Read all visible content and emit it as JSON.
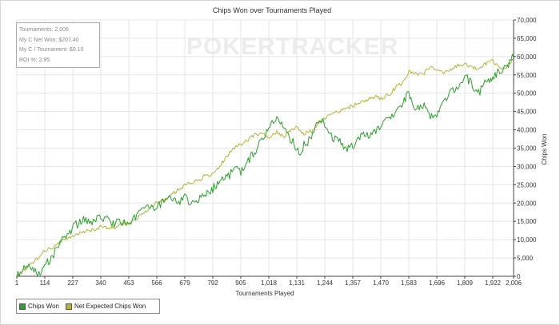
{
  "chart_data": {
    "type": "line",
    "title": "Chips Won over Tournaments Played",
    "xlabel": "Tournaments Played",
    "ylabel": "Chips Won",
    "x_ticks": [
      "1",
      "114",
      "227",
      "340",
      "453",
      "566",
      "679",
      "792",
      "905",
      "1,018",
      "1,131",
      "1,244",
      "1,357",
      "1,470",
      "1,583",
      "1,696",
      "1,809",
      "1,922",
      "2,006"
    ],
    "y_ticks": [
      "0",
      "5,000",
      "10,000",
      "15,000",
      "20,000",
      "25,000",
      "30,000",
      "35,000",
      "40,000",
      "45,000",
      "50,000",
      "55,000",
      "60,000",
      "65,000",
      "70,000"
    ],
    "xlim": [
      1,
      2006
    ],
    "ylim": [
      0,
      70000
    ],
    "grid": true,
    "legend_position": "bottom-left",
    "series": [
      {
        "name": "Chips Won",
        "color": "#2ca02c",
        "x": [
          1,
          30,
          60,
          90,
          114,
          150,
          180,
          210,
          240,
          270,
          300,
          330,
          360,
          390,
          420,
          453,
          480,
          510,
          540,
          566,
          600,
          630,
          660,
          679,
          700,
          730,
          760,
          792,
          820,
          850,
          880,
          905,
          930,
          960,
          990,
          1018,
          1050,
          1080,
          1100,
          1131,
          1140,
          1160,
          1180,
          1200,
          1220,
          1244,
          1270,
          1290,
          1310,
          1330,
          1357,
          1380,
          1400,
          1430,
          1470,
          1500,
          1530,
          1560,
          1583,
          1610,
          1640,
          1670,
          1696,
          1720,
          1750,
          1780,
          1809,
          1840,
          1870,
          1900,
          1922,
          1950,
          1980,
          2006
        ],
        "values": [
          0,
          2000,
          2500,
          1000,
          3000,
          6000,
          10000,
          12000,
          14000,
          15500,
          14000,
          16000,
          15500,
          14500,
          15000,
          14000,
          16000,
          18000,
          18500,
          19000,
          20500,
          21500,
          20500,
          22000,
          20000,
          21000,
          22000,
          24000,
          26000,
          27000,
          29000,
          28500,
          31000,
          34000,
          37000,
          41000,
          43000,
          40000,
          38000,
          35000,
          33000,
          36000,
          37000,
          40000,
          43000,
          42000,
          38000,
          37000,
          36500,
          35000,
          35500,
          38000,
          39000,
          38500,
          41000,
          43000,
          45000,
          47500,
          50000,
          45500,
          47000,
          43500,
          44000,
          47000,
          50000,
          52000,
          55000,
          52000,
          50500,
          53500,
          54500,
          56000,
          57500,
          60000
        ]
      },
      {
        "name": "Net Expected Chips Won",
        "color": "#b5b534",
        "x": [
          1,
          30,
          60,
          90,
          114,
          150,
          180,
          227,
          260,
          300,
          340,
          370,
          400,
          430,
          453,
          480,
          510,
          540,
          566,
          600,
          630,
          660,
          679,
          700,
          730,
          760,
          792,
          820,
          850,
          880,
          905,
          930,
          960,
          990,
          1018,
          1050,
          1080,
          1110,
          1131,
          1160,
          1190,
          1220,
          1244,
          1270,
          1300,
          1330,
          1357,
          1390,
          1420,
          1450,
          1470,
          1500,
          1530,
          1560,
          1583,
          1610,
          1640,
          1670,
          1696,
          1720,
          1750,
          1780,
          1809,
          1840,
          1870,
          1900,
          1922,
          1950,
          1980,
          2006
        ],
        "values": [
          0,
          1500,
          3500,
          5000,
          7000,
          8000,
          9500,
          11000,
          12000,
          12500,
          13500,
          13000,
          13500,
          14500,
          14000,
          15500,
          17000,
          19000,
          20000,
          21000,
          22500,
          24000,
          25000,
          25500,
          26000,
          27500,
          28000,
          30000,
          33000,
          35000,
          36000,
          37000,
          38500,
          39000,
          38000,
          39500,
          38000,
          40000,
          40500,
          39000,
          39500,
          42000,
          43000,
          44500,
          45000,
          46000,
          46500,
          47500,
          48500,
          49000,
          48500,
          49500,
          51500,
          53000,
          56000,
          55500,
          55000,
          57500,
          56000,
          55500,
          56500,
          57500,
          58000,
          57000,
          56500,
          58500,
          59000,
          56500,
          57500,
          59500
        ]
      }
    ]
  },
  "watermark": "POKERTRACKER",
  "stats": [
    "Tournaments: 2,006",
    "My C Net Won: $207.40",
    "My C / Tournament: $0.10",
    "ROI %: 2.95"
  ],
  "legend": [
    "Chips Won",
    "Net Expected Chips Won"
  ]
}
